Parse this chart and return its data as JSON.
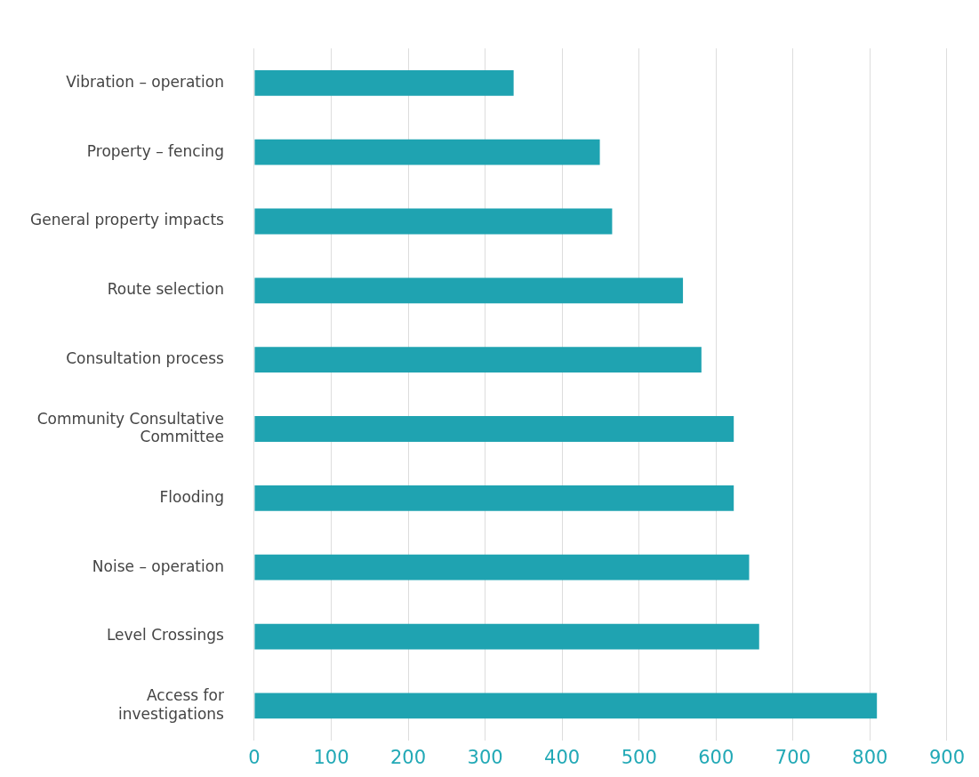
{
  "chart_data": {
    "type": "bar",
    "orientation": "horizontal",
    "categories": [
      "Vibration – operation",
      "Property – fencing",
      "General property impacts",
      "Route selection",
      "Consultation process",
      "Community Consultative Committee",
      "Flooding",
      "Noise – operation",
      "Level Crossings",
      "Access for investigations"
    ],
    "values": [
      337,
      449,
      465,
      557,
      581,
      623,
      623,
      643,
      656,
      809
    ],
    "color": "#1fa3b1",
    "xlim": [
      0,
      900
    ],
    "xticks": [
      0,
      100,
      200,
      300,
      400,
      500,
      600,
      700,
      800,
      900
    ],
    "grid": "x",
    "legend": false
  }
}
